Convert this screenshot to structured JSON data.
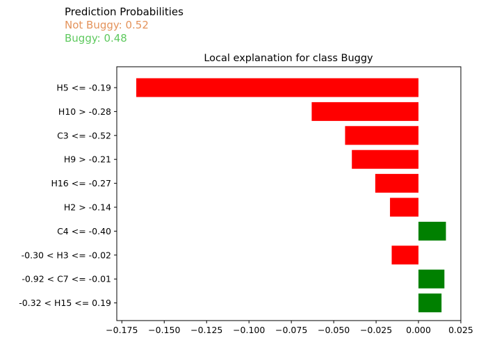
{
  "header": {
    "title": "Prediction Probabilities",
    "not_buggy": "Not Buggy: 0.52",
    "buggy": "Buggy: 0.48"
  },
  "colors": {
    "negative": "#ff0000",
    "positive": "#008000",
    "not_buggy_text": "#e4935b",
    "buggy_text": "#5ec95e"
  },
  "chart_data": {
    "type": "bar",
    "orientation": "horizontal",
    "title": "Local explanation for class Buggy",
    "xlabel": "",
    "ylabel": "",
    "xlim": [
      -0.178,
      0.025
    ],
    "xticks": [
      -0.175,
      -0.15,
      -0.125,
      -0.1,
      -0.075,
      -0.05,
      -0.025,
      0.0,
      0.025
    ],
    "xtick_labels": [
      "−0.175",
      "−0.150",
      "−0.125",
      "−0.100",
      "−0.075",
      "−0.050",
      "−0.025",
      "0.000",
      "0.025"
    ],
    "categories": [
      "H5 <= -0.19",
      "H10 > -0.28",
      "C3 <= -0.52",
      "H9 > -0.21",
      "H16 <= -0.27",
      "H2 > -0.14",
      "C4 <= -0.40",
      "-0.30 < H3 <= -0.02",
      "-0.92 < C7 <= -0.01",
      "-0.32 < H15 <= 0.19"
    ],
    "values": [
      -0.1665,
      -0.063,
      -0.0433,
      -0.0393,
      -0.0255,
      -0.0168,
      0.0162,
      -0.0158,
      0.0153,
      0.0136
    ],
    "grid": false
  }
}
